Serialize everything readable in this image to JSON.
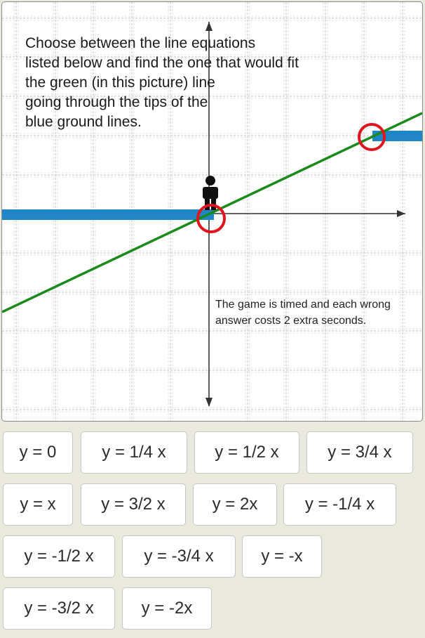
{
  "game": {
    "instructions": "Choose between the line equations\nlisted below and find the one that would fit\nthe green (in this picture) line\ngoing through the tips of the\nblue ground lines.",
    "timer_note": "The game is timed and each wrong\n answer costs 2 extra seconds."
  },
  "colors": {
    "ground": "#1f86c8",
    "green_line": "#1a8a1a",
    "target_circle": "#e0141e",
    "grid": "#cfcfcf",
    "axis": "#333333",
    "answer_border": "#c6c6c6",
    "page_background": "#e9e9dc"
  },
  "icons": [
    "person-icon",
    "target-circle-icon",
    "arrow-up-icon",
    "arrow-right-icon",
    "arrow-down-icon"
  ],
  "answers": [
    "y = 0",
    "y = 1/4 x",
    "y = 1/2 x",
    "y = 3/4 x",
    "y = x",
    "y = 3/2 x",
    "y = 2x",
    "y = -1/4 x",
    "y = -1/2 x",
    "y = -3/4 x",
    "y = -x",
    "y = -3/2 x",
    "y = -2x"
  ]
}
